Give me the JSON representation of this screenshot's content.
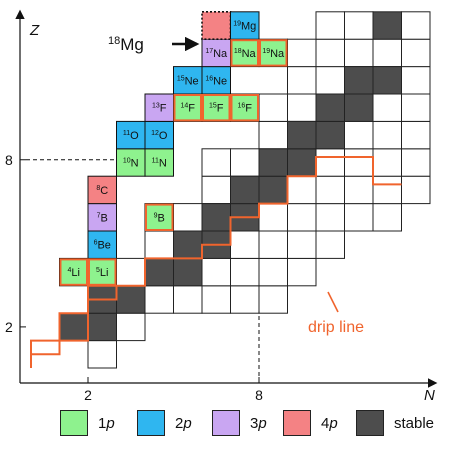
{
  "axes": {
    "x_label": "N",
    "y_label": "Z",
    "x_ticks": [
      "2",
      "8"
    ],
    "y_ticks": [
      "2",
      "8"
    ]
  },
  "annotation": {
    "arrow_label_sup": "18",
    "arrow_label_base": "Mg",
    "drip_line_label": "drip line"
  },
  "colors": {
    "1p": "#8ef28e",
    "2p": "#2fb6f0",
    "3p": "#c9a6f2",
    "4p": "#f48284",
    "stable": "#4d4d4d",
    "drip_line": "#f0642d",
    "grid": "#222222"
  },
  "legend": [
    {
      "key": "1p",
      "label_prefix": "1",
      "label_italic": "p"
    },
    {
      "key": "2p",
      "label_prefix": "2",
      "label_italic": "p"
    },
    {
      "key": "3p",
      "label_prefix": "3",
      "label_italic": "p"
    },
    {
      "key": "4p",
      "label_prefix": "4",
      "label_italic": "p"
    },
    {
      "key": "stable",
      "label_prefix": "stable",
      "label_italic": ""
    }
  ],
  "chart_data": {
    "type": "heatmap",
    "description_axes": {
      "x": "N",
      "y": "Z"
    },
    "stable_cells": [
      [
        1,
        1
      ],
      [
        2,
        1
      ],
      [
        2,
        2
      ],
      [
        3,
        2
      ],
      [
        4,
        3
      ],
      [
        5,
        3
      ],
      [
        5,
        4
      ],
      [
        6,
        4
      ],
      [
        6,
        5
      ],
      [
        7,
        5
      ],
      [
        7,
        6
      ],
      [
        8,
        6
      ],
      [
        8,
        7
      ],
      [
        9,
        7
      ],
      [
        9,
        8
      ],
      [
        10,
        8
      ],
      [
        10,
        9
      ],
      [
        11,
        9
      ],
      [
        11,
        10
      ],
      [
        12,
        10
      ],
      [
        12,
        12
      ]
    ],
    "white_cells": [
      [
        2,
        0
      ],
      [
        3,
        1
      ],
      [
        3,
        3
      ],
      [
        4,
        2
      ],
      [
        4,
        4
      ],
      [
        5,
        2
      ],
      [
        5,
        5
      ],
      [
        6,
        2
      ],
      [
        6,
        3
      ],
      [
        6,
        6
      ],
      [
        6,
        7
      ],
      [
        7,
        2
      ],
      [
        7,
        3
      ],
      [
        7,
        4
      ],
      [
        7,
        7
      ],
      [
        8,
        2
      ],
      [
        8,
        3
      ],
      [
        8,
        4
      ],
      [
        8,
        5
      ],
      [
        8,
        8
      ],
      [
        8,
        9
      ],
      [
        9,
        3
      ],
      [
        9,
        4
      ],
      [
        9,
        5
      ],
      [
        9,
        6
      ],
      [
        9,
        9
      ],
      [
        9,
        10
      ],
      [
        9,
        11
      ],
      [
        10,
        4
      ],
      [
        10,
        5
      ],
      [
        10,
        6
      ],
      [
        10,
        7
      ],
      [
        10,
        10
      ],
      [
        10,
        11
      ],
      [
        10,
        12
      ],
      [
        11,
        5
      ],
      [
        11,
        6
      ],
      [
        11,
        7
      ],
      [
        11,
        8
      ],
      [
        11,
        11
      ],
      [
        11,
        12
      ],
      [
        12,
        5
      ],
      [
        12,
        6
      ],
      [
        12,
        7
      ],
      [
        12,
        8
      ],
      [
        12,
        9
      ],
      [
        12,
        11
      ],
      [
        13,
        6
      ],
      [
        13,
        7
      ],
      [
        13,
        8
      ],
      [
        13,
        9
      ],
      [
        13,
        10
      ],
      [
        13,
        11
      ],
      [
        13,
        12
      ]
    ],
    "emitters": [
      {
        "n": 1,
        "z": 3,
        "sup": "4",
        "el": "Li",
        "type": "1p"
      },
      {
        "n": 2,
        "z": 3,
        "sup": "5",
        "el": "Li",
        "type": "1p"
      },
      {
        "n": 2,
        "z": 4,
        "sup": "6",
        "el": "Be",
        "type": "2p"
      },
      {
        "n": 2,
        "z": 5,
        "sup": "7",
        "el": "B",
        "type": "3p"
      },
      {
        "n": 2,
        "z": 6,
        "sup": "8",
        "el": "C",
        "type": "4p"
      },
      {
        "n": 4,
        "z": 5,
        "sup": "9",
        "el": "B",
        "type": "1p"
      },
      {
        "n": 3,
        "z": 7,
        "sup": "10",
        "el": "N",
        "type": "1p"
      },
      {
        "n": 4,
        "z": 7,
        "sup": "11",
        "el": "N",
        "type": "1p"
      },
      {
        "n": 3,
        "z": 8,
        "sup": "11",
        "el": "O",
        "type": "2p"
      },
      {
        "n": 4,
        "z": 8,
        "sup": "12",
        "el": "O",
        "type": "2p"
      },
      {
        "n": 4,
        "z": 9,
        "sup": "13",
        "el": "F",
        "type": "3p"
      },
      {
        "n": 5,
        "z": 9,
        "sup": "14",
        "el": "F",
        "type": "1p"
      },
      {
        "n": 6,
        "z": 9,
        "sup": "15",
        "el": "F",
        "type": "1p"
      },
      {
        "n": 7,
        "z": 9,
        "sup": "16",
        "el": "F",
        "type": "1p"
      },
      {
        "n": 5,
        "z": 10,
        "sup": "15",
        "el": "Ne",
        "type": "2p"
      },
      {
        "n": 6,
        "z": 10,
        "sup": "16",
        "el": "Ne",
        "type": "2p"
      },
      {
        "n": 6,
        "z": 11,
        "sup": "17",
        "el": "Na",
        "type": "3p"
      },
      {
        "n": 7,
        "z": 11,
        "sup": "18",
        "el": "Na",
        "type": "1p"
      },
      {
        "n": 8,
        "z": 11,
        "sup": "19",
        "el": "Na",
        "type": "1p"
      },
      {
        "n": 6,
        "z": 12,
        "sup": "",
        "el": "",
        "type": "4p"
      },
      {
        "n": 7,
        "z": 12,
        "sup": "19",
        "el": "Mg",
        "type": "2p"
      }
    ],
    "dashed_cell": {
      "n": 6,
      "z": 12
    },
    "orange_outlined": [
      [
        1,
        3
      ],
      [
        2,
        3
      ],
      [
        4,
        5
      ],
      [
        5,
        9
      ],
      [
        6,
        9
      ],
      [
        7,
        9
      ],
      [
        7,
        11
      ],
      [
        8,
        11
      ]
    ],
    "proton_drip_line": [
      [
        0,
        0.5
      ],
      [
        1,
        0.5
      ],
      [
        1,
        1
      ],
      [
        2,
        1
      ],
      [
        2,
        2.5
      ],
      [
        3,
        2.5
      ],
      [
        3,
        3
      ],
      [
        4,
        3
      ],
      [
        4,
        4
      ],
      [
        6,
        4
      ],
      [
        6,
        4.5
      ],
      [
        7,
        4.5
      ],
      [
        7,
        5.5
      ],
      [
        8,
        5.5
      ],
      [
        8,
        6
      ],
      [
        9,
        6
      ],
      [
        9,
        7
      ],
      [
        10,
        7
      ],
      [
        10,
        7.7
      ],
      [
        12,
        7.7
      ],
      [
        12,
        6.7
      ],
      [
        13,
        6.7
      ]
    ],
    "neutron_drip_line": [
      [
        0,
        0
      ],
      [
        0,
        1
      ],
      [
        1,
        1
      ],
      [
        1,
        2
      ],
      [
        2,
        2
      ],
      [
        2,
        3
      ],
      [
        3,
        3
      ]
    ],
    "dashed_guides": {
      "x_value": 8,
      "y_value": 8
    }
  }
}
